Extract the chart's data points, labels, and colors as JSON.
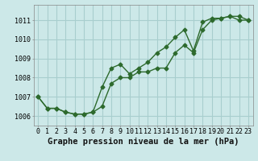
{
  "xlabel": "Graphe pression niveau de la mer (hPa)",
  "hours": [
    0,
    1,
    2,
    3,
    4,
    5,
    6,
    7,
    8,
    9,
    10,
    11,
    12,
    13,
    14,
    15,
    16,
    17,
    18,
    19,
    20,
    21,
    22,
    23
  ],
  "line1": [
    1007.0,
    1006.4,
    1006.4,
    1006.2,
    1006.1,
    1006.1,
    1006.2,
    1006.5,
    1007.7,
    1008.0,
    1008.0,
    1008.3,
    1008.3,
    1008.5,
    1008.5,
    1009.3,
    1009.7,
    1009.3,
    1010.5,
    1011.0,
    1011.1,
    1011.2,
    1011.0,
    1011.0
  ],
  "line2": [
    1007.0,
    1006.4,
    1006.4,
    1006.2,
    1006.1,
    1006.1,
    1006.2,
    1007.5,
    1008.5,
    1008.7,
    1008.2,
    1008.5,
    1008.8,
    1009.3,
    1009.6,
    1010.1,
    1010.5,
    1009.4,
    1010.9,
    1011.1,
    1011.1,
    1011.2,
    1011.2,
    1011.0
  ],
  "line_color": "#2d6a2d",
  "bg_color": "#cce8e8",
  "grid_color": "#a8cece",
  "ylim": [
    1005.5,
    1011.8
  ],
  "yticks": [
    1006,
    1007,
    1008,
    1009,
    1010,
    1011
  ],
  "xticks": [
    0,
    1,
    2,
    3,
    4,
    5,
    6,
    7,
    8,
    9,
    10,
    11,
    12,
    13,
    14,
    15,
    16,
    17,
    18,
    19,
    20,
    21,
    22,
    23
  ],
  "marker": "D",
  "markersize": 2.5,
  "linewidth": 1.0,
  "xlabel_fontsize": 7.5,
  "tick_fontsize": 6.0
}
